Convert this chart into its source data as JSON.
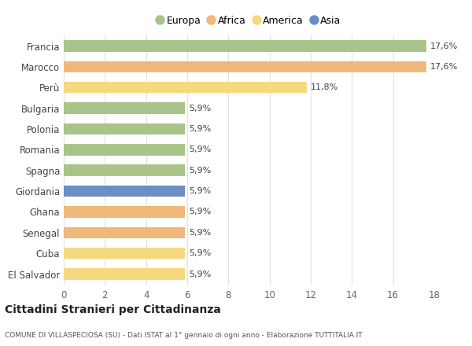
{
  "categories": [
    "El Salvador",
    "Cuba",
    "Senegal",
    "Ghana",
    "Giordania",
    "Spagna",
    "Romania",
    "Polonia",
    "Bulgaria",
    "Perù",
    "Marocco",
    "Francia"
  ],
  "values": [
    5.9,
    5.9,
    5.9,
    5.9,
    5.9,
    5.9,
    5.9,
    5.9,
    5.9,
    11.8,
    17.6,
    17.6
  ],
  "colors": [
    "#f5d97e",
    "#f5d97e",
    "#f0b87a",
    "#f0b87a",
    "#6b8fc2",
    "#a8c488",
    "#a8c488",
    "#a8c488",
    "#a8c488",
    "#f5d97e",
    "#f0b87a",
    "#a8c488"
  ],
  "labels": [
    "5,9%",
    "5,9%",
    "5,9%",
    "5,9%",
    "5,9%",
    "5,9%",
    "5,9%",
    "5,9%",
    "5,9%",
    "11,8%",
    "17,6%",
    "17,6%"
  ],
  "legend": {
    "Europa": "#a8c488",
    "Africa": "#f0b87a",
    "America": "#f5d97e",
    "Asia": "#6b8fc2"
  },
  "xlim": [
    0,
    18
  ],
  "xticks": [
    0,
    2,
    4,
    6,
    8,
    10,
    12,
    14,
    16,
    18
  ],
  "title": "Cittadini Stranieri per Cittadinanza",
  "subtitle": "COMUNE DI VILLASPECIOSA (SU) - Dati ISTAT al 1° gennaio di ogni anno - Elaborazione TUTTITALIA.IT",
  "background_color": "#ffffff",
  "grid_color": "#e0e0e0",
  "bar_height": 0.55,
  "label_fontsize": 8,
  "ytick_fontsize": 8.5,
  "xtick_fontsize": 8.5
}
